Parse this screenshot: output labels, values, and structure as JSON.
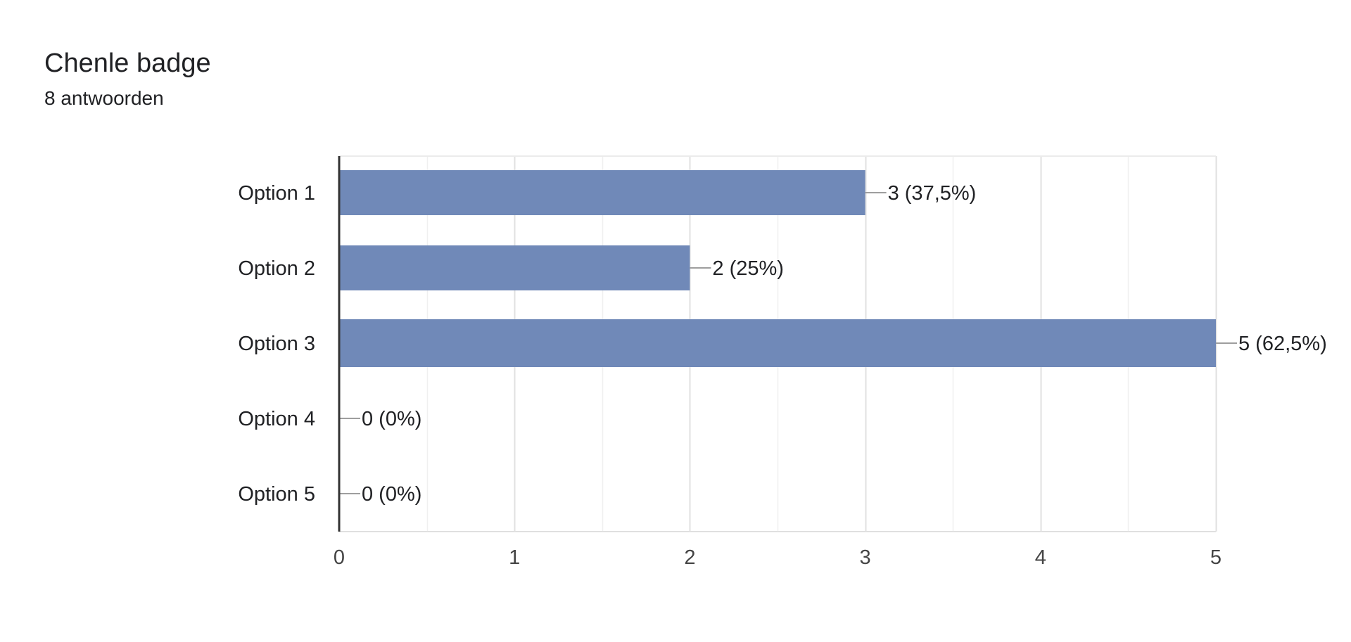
{
  "header": {
    "title": "Chenle badge",
    "subtitle": "8 antwoorden"
  },
  "chart_data": {
    "type": "bar",
    "orientation": "horizontal",
    "title": "Chenle badge",
    "subtitle": "8 antwoorden",
    "categories": [
      "Option 1",
      "Option 2",
      "Option 3",
      "Option 4",
      "Option 5"
    ],
    "values": [
      3,
      2,
      5,
      0,
      0
    ],
    "data_labels": [
      "3 (37,5%)",
      "2 (25%)",
      "5 (62,5%)",
      "0 (0%)",
      "0 (0%)"
    ],
    "xlim": [
      0,
      5
    ],
    "x_ticks": [
      0,
      1,
      2,
      3,
      4,
      5
    ],
    "xlabel": "",
    "ylabel": "",
    "grid": true,
    "legend": "none",
    "bar_color": "#7089b8"
  }
}
